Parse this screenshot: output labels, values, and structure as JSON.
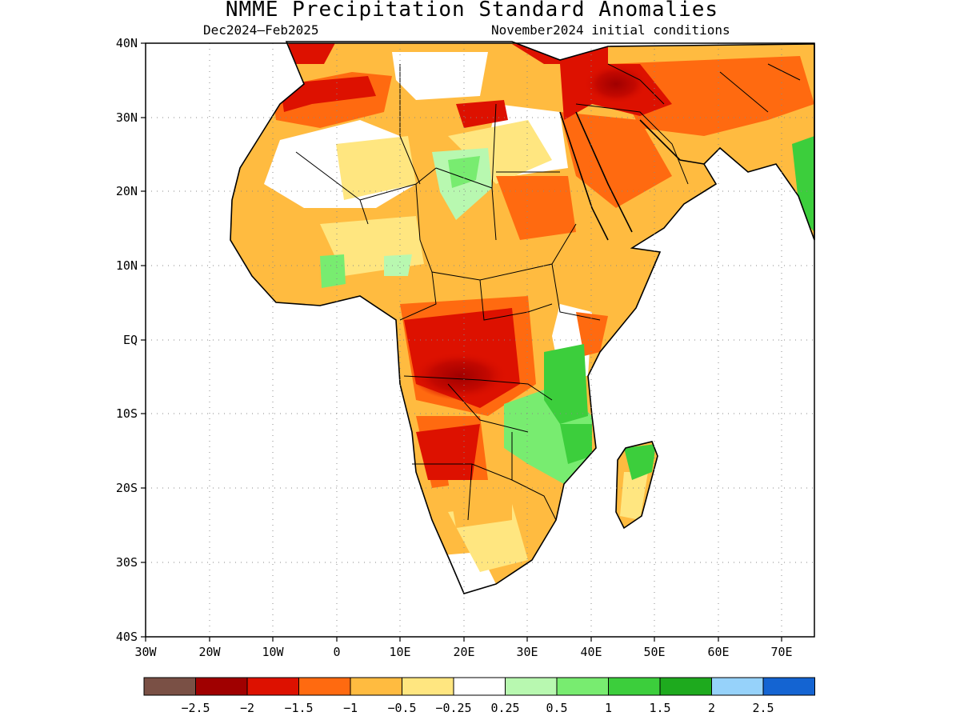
{
  "title": "NMME Precipitation Standard Anomalies",
  "period": "Dec2024–Feb2025",
  "initial_conditions": "November2024 initial conditions",
  "y_ticks": [
    "40N",
    "30N",
    "20N",
    "10N",
    "EQ",
    "10S",
    "20S",
    "30S",
    "40S"
  ],
  "x_ticks": [
    "30W",
    "20W",
    "10W",
    "0",
    "10E",
    "20E",
    "30E",
    "40E",
    "50E",
    "60E",
    "70E"
  ],
  "legend": {
    "colors": [
      "#7a5045",
      "#a00000",
      "#dd1100",
      "#ff6a10",
      "#ffbb40",
      "#ffe680",
      "#ffffff",
      "#b8f8b0",
      "#78ec70",
      "#3cce3c",
      "#1eaa1e",
      "#96d2fa",
      "#1464d2"
    ],
    "labels": [
      "−2.5",
      "−2",
      "−1.5",
      "−1",
      "−0.5",
      "−0.25",
      "0.25",
      "0.5",
      "1",
      "1.5",
      "2",
      "2.5"
    ]
  },
  "colors": {
    "strong_dry": "#dd1100",
    "moderate_dry": "#ff6a10",
    "weak_dry": "#ffbb40",
    "slight_dry": "#ffe680",
    "wet": "#78ec70",
    "strong_wet": "#3cce3c"
  }
}
